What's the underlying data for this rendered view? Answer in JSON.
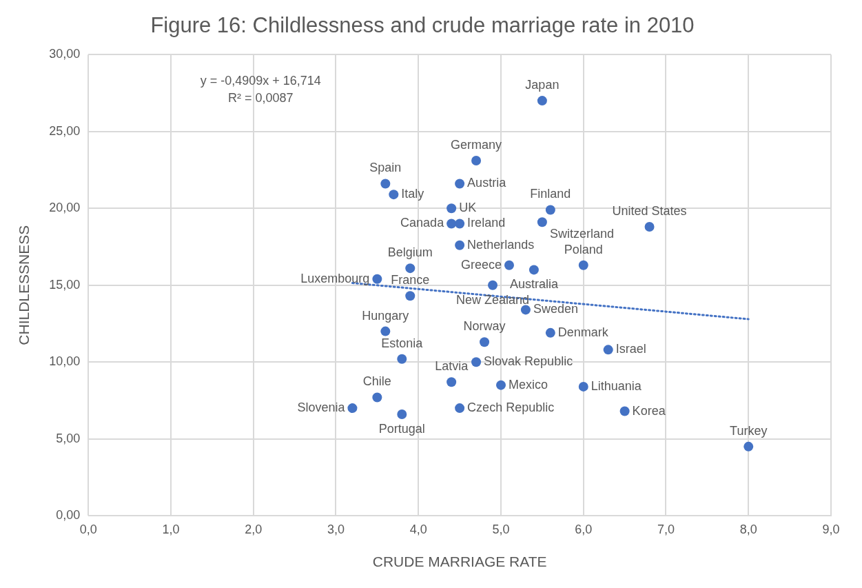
{
  "chart_data": {
    "type": "scatter",
    "title": "Figure 16: Childlessness and crude marriage rate in 2010",
    "xlabel": "CRUDE MARRIAGE RATE",
    "ylabel": "CHILDLESSNESS",
    "xlim": [
      0,
      9
    ],
    "xticks": [
      {
        "value": 0,
        "label": "0,0"
      },
      {
        "value": 1,
        "label": "1,0"
      },
      {
        "value": 2,
        "label": "2,0"
      },
      {
        "value": 3,
        "label": "3,0"
      },
      {
        "value": 4,
        "label": "4,0"
      },
      {
        "value": 5,
        "label": "5,0"
      },
      {
        "value": 6,
        "label": "6,0"
      },
      {
        "value": 7,
        "label": "7,0"
      },
      {
        "value": 8,
        "label": "8,0"
      },
      {
        "value": 9,
        "label": "9,0"
      }
    ],
    "ylim": [
      0,
      30
    ],
    "yticks": [
      {
        "value": 0,
        "label": "0,00"
      },
      {
        "value": 5,
        "label": "5,00"
      },
      {
        "value": 10,
        "label": "10,00"
      },
      {
        "value": 15,
        "label": "15,00"
      },
      {
        "value": 20,
        "label": "20,00"
      },
      {
        "value": 25,
        "label": "25,00"
      },
      {
        "value": 30,
        "label": "30,00"
      }
    ],
    "grid": true,
    "marker": "circle",
    "series": [
      {
        "type": "scatter",
        "color": "#4472c4",
        "x": [
          5.5,
          4.7,
          4.5,
          3.6,
          3.7,
          4.4,
          4.4,
          4.5,
          4.5,
          5.6,
          5.5,
          6.8,
          3.9,
          3.5,
          3.9,
          5.1,
          5.4,
          6.0,
          4.9,
          5.3,
          3.6,
          3.8,
          4.8,
          5.6,
          6.3,
          4.7,
          4.4,
          5.0,
          6.0,
          3.5,
          4.5,
          3.2,
          3.8,
          6.5,
          8.0
        ],
        "values": [
          27.0,
          23.1,
          21.6,
          21.6,
          20.9,
          20.0,
          19.0,
          19.0,
          17.6,
          19.9,
          19.1,
          18.8,
          16.1,
          15.4,
          14.3,
          16.3,
          16.0,
          16.3,
          15.0,
          13.4,
          12.0,
          10.2,
          11.3,
          11.9,
          10.8,
          10.0,
          8.7,
          8.5,
          8.4,
          7.7,
          7.0,
          7.0,
          6.6,
          6.8,
          4.5
        ]
      },
      {
        "type": "line",
        "color": "#4472c4",
        "x": [
          3.2,
          8.0
        ],
        "values": [
          15.14,
          12.79
        ],
        "line_style": "dotted",
        "marker": "none"
      }
    ],
    "annotations": [
      "y = -0,4909x + 16,714",
      "R² = 0,0087",
      {
        "text": "Japan",
        "x": 5.5,
        "y": 27.0
      },
      {
        "text": "Germany",
        "x": 4.7,
        "y": 23.1
      },
      {
        "text": "Austria",
        "x": 4.5,
        "y": 21.6
      },
      {
        "text": "Spain",
        "x": 3.6,
        "y": 21.6
      },
      {
        "text": "Italy",
        "x": 3.7,
        "y": 20.9
      },
      {
        "text": "UK",
        "x": 4.4,
        "y": 20.0
      },
      {
        "text": "Canada",
        "x": 4.4,
        "y": 19.0
      },
      {
        "text": "Ireland",
        "x": 4.5,
        "y": 19.0
      },
      {
        "text": "Netherlands",
        "x": 4.5,
        "y": 17.6
      },
      {
        "text": "Finland",
        "x": 5.6,
        "y": 19.9
      },
      {
        "text": "Switzerland",
        "x": 5.5,
        "y": 19.1
      },
      {
        "text": "United States",
        "x": 6.8,
        "y": 18.8
      },
      {
        "text": "Belgium",
        "x": 3.9,
        "y": 16.1
      },
      {
        "text": "Luxembourg",
        "x": 3.5,
        "y": 15.4
      },
      {
        "text": "France",
        "x": 3.9,
        "y": 14.3
      },
      {
        "text": "Greece",
        "x": 5.1,
        "y": 16.3
      },
      {
        "text": "Australia",
        "x": 5.4,
        "y": 16.0
      },
      {
        "text": "Poland",
        "x": 6.0,
        "y": 16.3
      },
      {
        "text": "New Zealand",
        "x": 4.9,
        "y": 15.0
      },
      {
        "text": "Sweden",
        "x": 5.3,
        "y": 13.4
      },
      {
        "text": "Hungary",
        "x": 3.6,
        "y": 12.0
      },
      {
        "text": "Estonia",
        "x": 3.8,
        "y": 10.2
      },
      {
        "text": "Norway",
        "x": 4.8,
        "y": 11.3
      },
      {
        "text": "Denmark",
        "x": 5.6,
        "y": 11.9
      },
      {
        "text": "Israel",
        "x": 6.3,
        "y": 10.8
      },
      {
        "text": "Slovak Republic",
        "x": 4.7,
        "y": 10.0
      },
      {
        "text": "Latvia",
        "x": 4.4,
        "y": 8.7
      },
      {
        "text": "Mexico",
        "x": 5.0,
        "y": 8.5
      },
      {
        "text": "Lithuania",
        "x": 6.0,
        "y": 8.4
      },
      {
        "text": "Chile",
        "x": 3.5,
        "y": 7.7
      },
      {
        "text": "Czech Republic",
        "x": 4.5,
        "y": 7.0
      },
      {
        "text": "Slovenia",
        "x": 3.2,
        "y": 7.0
      },
      {
        "text": "Portugal",
        "x": 3.8,
        "y": 6.6
      },
      {
        "text": "Korea",
        "x": 6.5,
        "y": 6.8
      },
      {
        "text": "Turkey",
        "x": 8.0,
        "y": 4.5
      }
    ]
  }
}
